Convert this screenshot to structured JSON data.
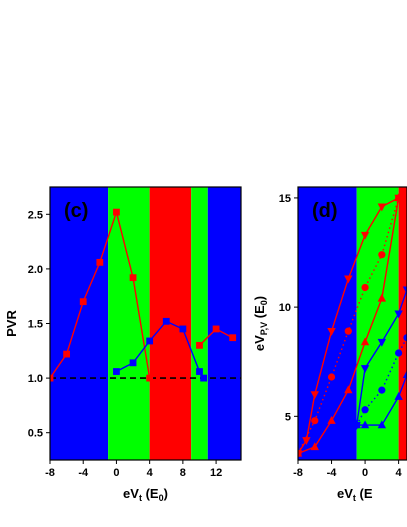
{
  "chart_data": [
    {
      "type": "line",
      "panel_label": "(c)",
      "xlabel": "eV",
      "xlabel_sub": "t",
      "xlabel_unit": " (E",
      "xlabel_unit_sub": "0",
      "xlabel_close": ")",
      "ylabel": "PVR",
      "xlim": [
        -8,
        15
      ],
      "ylim": [
        0.25,
        2.75
      ],
      "xticks": [
        "-8",
        "-4",
        "0",
        "4",
        "8",
        "12"
      ],
      "xtick_values": [
        -8,
        -4,
        0,
        4,
        8,
        12
      ],
      "yticks": [
        "0.5",
        "1.0",
        "1.5",
        "2.0",
        "2.5"
      ],
      "ytick_values": [
        0.5,
        1.0,
        1.5,
        2.0,
        2.5
      ],
      "bands": [
        {
          "x0": -8,
          "x1": -1,
          "color": "#0000ff"
        },
        {
          "x0": -1,
          "x1": 4,
          "color": "#00ff00"
        },
        {
          "x0": 4,
          "x1": 9,
          "color": "#ff0000"
        },
        {
          "x0": 9,
          "x1": 11,
          "color": "#00ff00"
        },
        {
          "x0": 11,
          "x1": 15,
          "color": "#0000ff"
        }
      ],
      "reference_line": {
        "y": 1.0,
        "style": "dashed",
        "color": "#000000"
      },
      "series": [
        {
          "color": "#ff0000",
          "marker": "square",
          "x": [
            -8,
            -6,
            -4,
            -2,
            0,
            2,
            4
          ],
          "y": [
            1.0,
            1.22,
            1.7,
            2.06,
            2.52,
            1.92,
            1.0
          ]
        },
        {
          "color": "#0000ff",
          "marker": "square",
          "x": [
            0,
            2,
            4,
            6,
            8,
            10,
            10.5
          ],
          "y": [
            1.06,
            1.14,
            1.34,
            1.52,
            1.45,
            1.06,
            1.0
          ]
        },
        {
          "color": "#ff0000",
          "marker": "square",
          "x": [
            10,
            12,
            14
          ],
          "y": [
            1.3,
            1.45,
            1.37
          ]
        }
      ]
    },
    {
      "type": "line",
      "panel_label": "(d)",
      "xlabel": "eV",
      "xlabel_sub": "t",
      "xlabel_unit": " (E",
      "ylabel": "eV",
      "ylabel_sub": "P,V",
      "ylabel_unit": " (E",
      "ylabel_unit_sub": "0",
      "ylabel_close": ")",
      "xlim": [
        -8,
        5
      ],
      "ylim": [
        3,
        15.5
      ],
      "xticks": [
        "-8",
        "-4",
        "0",
        "4"
      ],
      "xtick_values": [
        -8,
        -4,
        0,
        4
      ],
      "yticks": [
        "5",
        "10",
        "15"
      ],
      "ytick_values": [
        5,
        10,
        15
      ],
      "bands": [
        {
          "x0": -8,
          "x1": -1,
          "color": "#0000ff"
        },
        {
          "x0": -1,
          "x1": 4,
          "color": "#00ff00"
        },
        {
          "x0": 4,
          "x1": 5,
          "color": "#ff0000"
        }
      ],
      "series": [
        {
          "color": "#ff0000",
          "marker": "triangle-down",
          "line": "solid",
          "x": [
            -8,
            -7,
            -6,
            -4,
            -2,
            0,
            2,
            4
          ],
          "y": [
            3.3,
            3.9,
            6.0,
            8.9,
            11.3,
            13.3,
            14.6,
            15.0
          ]
        },
        {
          "color": "#ff0000",
          "marker": "triangle-up",
          "line": "solid",
          "x": [
            -8,
            -6,
            -4,
            -2,
            0,
            2,
            4
          ],
          "y": [
            3.3,
            3.6,
            4.8,
            6.2,
            8.4,
            10.4,
            15.0
          ]
        },
        {
          "color": "#ff0000",
          "marker": "circle",
          "line": "dotted",
          "x": [
            -8,
            -6,
            -4,
            -2,
            0,
            2,
            4
          ],
          "y": [
            3.3,
            4.8,
            6.8,
            8.9,
            10.9,
            12.4,
            15.0
          ]
        },
        {
          "color": "#0000ff",
          "marker": "triangle-down",
          "line": "solid",
          "x": [
            -1,
            0,
            2,
            4,
            5
          ],
          "y": [
            4.6,
            7.2,
            8.4,
            9.7,
            10.8
          ]
        },
        {
          "color": "#0000ff",
          "marker": "circle",
          "line": "dotted",
          "x": [
            -1,
            0,
            2,
            4,
            5
          ],
          "y": [
            4.6,
            5.3,
            6.2,
            7.9,
            8.6
          ]
        },
        {
          "color": "#0000ff",
          "marker": "triangle-up",
          "line": "solid",
          "x": [
            -1,
            0,
            2,
            4,
            5
          ],
          "y": [
            4.6,
            4.6,
            4.6,
            5.9,
            6.9
          ]
        }
      ]
    }
  ]
}
